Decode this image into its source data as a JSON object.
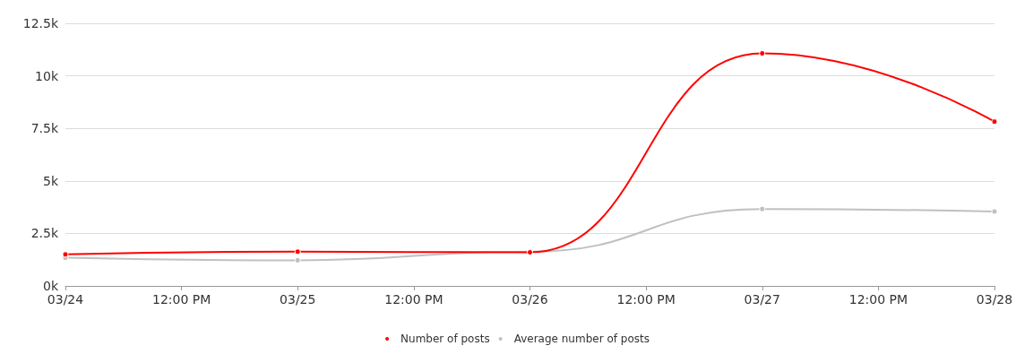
{
  "chart_data": {
    "type": "line",
    "x": [
      "--03-24",
      "--03-25",
      "--03-26",
      "--03-27",
      "--03-28"
    ],
    "series": [
      {
        "name": "Number of posts",
        "color": "#ff0000",
        "values": [
          1.5,
          1.63,
          1.6,
          11.07,
          7.82
        ]
      },
      {
        "name": "Average number of posts",
        "color": "#c0c0c0",
        "values": [
          1.34,
          1.22,
          1.63,
          3.66,
          3.54
        ]
      }
    ],
    "xlim": [
      "--03-24",
      "--03-28"
    ],
    "xticks": [
      {
        "value": "--03-24",
        "label": "03/24"
      },
      {
        "value": "--03-24T12:00",
        "label": "12:00 PM"
      },
      {
        "value": "--03-25",
        "label": "03/25"
      },
      {
        "value": "--03-25T12:00",
        "label": "12:00 PM"
      },
      {
        "value": "--03-26",
        "label": "03/26"
      },
      {
        "value": "--03-26T12:00",
        "label": "12:00 PM"
      },
      {
        "value": "--03-27",
        "label": "03/27"
      },
      {
        "value": "--03-27T12:00",
        "label": "12:00 PM"
      },
      {
        "value": "--03-28",
        "label": "03/28"
      }
    ],
    "ylim": [
      0,
      12.5
    ],
    "yticks": [
      {
        "value": 0,
        "label": "0k"
      },
      {
        "value": 2.5,
        "label": "2.5k"
      },
      {
        "value": 5,
        "label": "5k"
      },
      {
        "value": 7.5,
        "label": "7.5k"
      },
      {
        "value": 10,
        "label": "10k"
      },
      {
        "value": 12.5,
        "label": "12.5k"
      }
    ],
    "grid": "y",
    "legend": "bottom",
    "marker": "circle",
    "line_style": "solid"
  }
}
